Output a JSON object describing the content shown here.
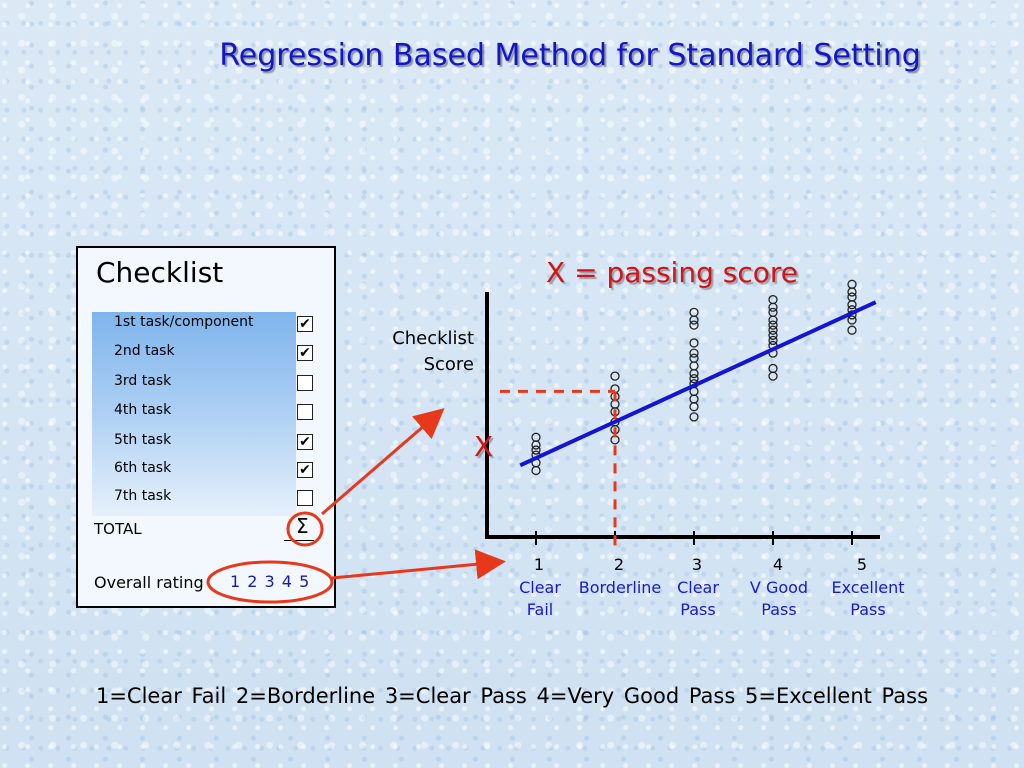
{
  "title": "Regression Based Method for Standard Setting",
  "passing_title": "X = passing score",
  "x_marker": "X",
  "checklist": {
    "heading": "Checklist",
    "tasks": [
      {
        "label": "1st task/component",
        "checked": true
      },
      {
        "label": "2nd task",
        "checked": true
      },
      {
        "label": "3rd task",
        "checked": false
      },
      {
        "label": "4th task",
        "checked": false
      },
      {
        "label": "5th task",
        "checked": true
      },
      {
        "label": "6th task",
        "checked": true
      },
      {
        "label": "7th task",
        "checked": false
      }
    ],
    "total_label": "TOTAL",
    "sigma": "Σ",
    "overall_label": "Overall rating",
    "rating_values": "1 2  3  4  5"
  },
  "legend_text": "1=Clear Fail    2=Borderline    3=Clear Pass     4=Very Good Pass    5=Excellent Pass",
  "colors": {
    "title": "#1414c8",
    "regression_line": "#1414d4",
    "accent_red": "#e8381c",
    "category_text": "#1a1ac8"
  },
  "chart_data": {
    "type": "scatter",
    "title": "",
    "ylabel": "Checklist Score",
    "x_ticks": [
      "1",
      "2",
      "3",
      "4",
      "5"
    ],
    "x_categories": [
      [
        "Clear",
        "Fail"
      ],
      [
        "Borderline"
      ],
      [
        "Clear",
        "Pass"
      ],
      [
        "V Good",
        "Pass"
      ],
      [
        "Excellent",
        "Pass"
      ]
    ],
    "points": {
      "1": [
        2.1,
        2.4,
        2.7,
        2.9,
        3.1,
        3.4
      ],
      "2": [
        3.3,
        3.7,
        4.0,
        4.4,
        4.7,
        5.0,
        5.3,
        5.8
      ],
      "3": [
        4.2,
        4.6,
        4.9,
        5.2,
        5.5,
        5.7,
        5.9,
        6.2,
        6.5,
        6.7,
        7.1,
        7.8,
        8.0,
        8.3
      ],
      "4": [
        5.8,
        6.1,
        6.7,
        7.0,
        7.2,
        7.4,
        7.6,
        7.8,
        8.0,
        8.3,
        8.5,
        8.8
      ],
      "5": [
        7.6,
        8.0,
        8.2,
        8.4,
        8.6,
        8.9,
        9.1,
        9.4
      ]
    },
    "regression_line": {
      "x1": 0.8,
      "y1": 2.3,
      "x2": 5.3,
      "y2": 8.7
    },
    "passing_point": {
      "x": 2,
      "y": 5.2
    },
    "ylim": [
      0,
      10
    ]
  }
}
